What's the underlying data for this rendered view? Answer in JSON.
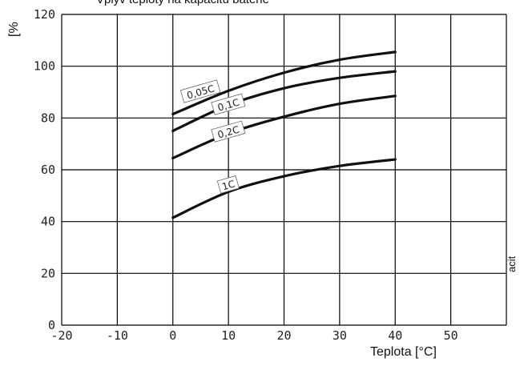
{
  "chart_data": {
    "type": "line",
    "title": "Vplyv teploty na kapacitu batérie",
    "xlabel": "Teplota [°C]",
    "ylabel": "[%",
    "side_text": "acit",
    "xlim": [
      -20,
      60
    ],
    "ylim": [
      0,
      120
    ],
    "x_ticks": [
      -20,
      -10,
      0,
      10,
      20,
      30,
      40,
      50
    ],
    "y_ticks": [
      0,
      20,
      40,
      60,
      80,
      100,
      120
    ],
    "grid": true,
    "series": [
      {
        "name": "0,05C",
        "label_at": [
          5,
          90
        ],
        "x": [
          0,
          10,
          20,
          30,
          40
        ],
        "y": [
          81.5,
          90.5,
          97.5,
          102.5,
          105.5
        ]
      },
      {
        "name": "0,1C",
        "label_at": [
          10,
          85
        ],
        "x": [
          0,
          10,
          20,
          30,
          40
        ],
        "y": [
          75,
          85,
          91.5,
          95.5,
          98
        ]
      },
      {
        "name": "0,2C",
        "label_at": [
          10,
          74.5
        ],
        "x": [
          0,
          10,
          20,
          30,
          40
        ],
        "y": [
          64.5,
          74,
          80.5,
          85.5,
          88.5
        ]
      },
      {
        "name": "1C",
        "label_at": [
          10,
          54
        ],
        "x": [
          0,
          10,
          20,
          30,
          40
        ],
        "y": [
          41.5,
          51.5,
          57.5,
          61.5,
          64
        ]
      }
    ]
  }
}
